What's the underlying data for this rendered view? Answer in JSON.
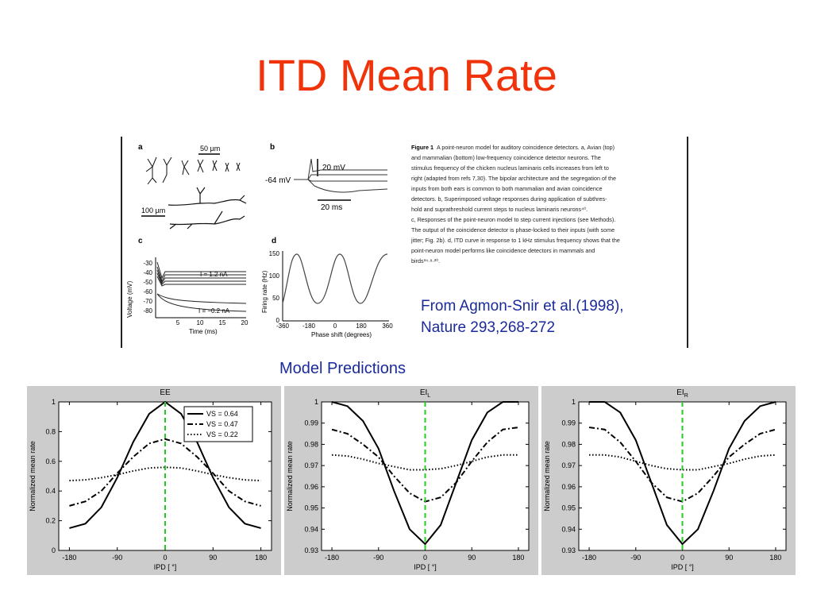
{
  "slide": {
    "title": "ITD Mean Rate",
    "citation_line1": "From Agmon-Snir et al.(1998),",
    "citation_line2": "Nature 293,268-272",
    "section_label": "Model Predictions"
  },
  "figure": {
    "panel_letters": [
      "a",
      "b",
      "c",
      "d"
    ],
    "a_scale1": "50 µm",
    "a_scale2": "100 µm",
    "b_scale_v": "20 mV",
    "b_scale_t": "20 ms",
    "b_rest": "-64 mV",
    "c_yticks": [
      "-30",
      "-40",
      "-50",
      "-60",
      "-70",
      "-80"
    ],
    "c_xticks": [
      "5",
      "10",
      "15",
      "20"
    ],
    "c_ylabel": "Voltage (mV)",
    "c_xlabel": "Time (ms)",
    "c_label_top": "I = 1.2 nA",
    "c_label_bottom": "I = −0.2 nA",
    "d_yticks": [
      "150",
      "100",
      "50",
      "0"
    ],
    "d_xticks": [
      "-360",
      "-180",
      "0",
      "180",
      "360"
    ],
    "d_ylabel": "Firing rate (Hz)",
    "d_xlabel": "Phase shift (degrees)",
    "caption_heading": "Figure 1",
    "caption_lines": [
      "A point-neuron model for auditory coincidence detectors. a, Avian (top)",
      "and mammalian (bottom) low-frequency coincidence detector neurons. The",
      "stimulus frequency of the chicken nucleus laminaris cells increases from left to",
      "right (adapted from refs 7,30). The bipolar architecture and the segregation of the",
      "inputs from both ears is common to both mammalian and avian coincidence",
      "detectors. b, Superimposed voltage responses during application of subthres-",
      "hold and suprathreshold current steps to nucleus laminaris neurons⁴⁰.",
      "c, Responses of the point-neuron model to step current injections (see Methods).",
      "The output of the coincidence detector is phase-locked to their inputs (with some",
      "jitter; Fig. 2b). d, ITD curve in response to 1 kHz stimulus frequency shows that the",
      "point-neuron model performs like coincidence detectors in mammals and",
      "birds³⁴·⁸·²⁰."
    ]
  },
  "colors": {
    "title": "#f0330a",
    "text_blue": "#1a2a9a",
    "panel_bg": "#cccccc",
    "marker": "#22cc22"
  },
  "chart_data": [
    {
      "type": "line",
      "title": "EE",
      "title_sub": "",
      "xlabel": "IPD [ °]",
      "ylabel": "Normalized mean rate",
      "xlim": [
        -200,
        200
      ],
      "ylim": [
        0,
        1
      ],
      "xticks": [
        -180,
        -90,
        0,
        90,
        180
      ],
      "yticks": [
        0,
        0.2,
        0.4,
        0.6,
        0.8,
        1
      ],
      "ytick_labels": [
        "0",
        "0.2",
        "0.4",
        "0.6",
        "0.8",
        "1"
      ],
      "marker_x": 0,
      "legend": "top-right",
      "series": [
        {
          "name": "VS = 0.64",
          "style": "solid",
          "x": [
            -180,
            -150,
            -120,
            -90,
            -60,
            -30,
            0,
            30,
            60,
            90,
            120,
            150,
            180
          ],
          "values": [
            0.15,
            0.18,
            0.29,
            0.49,
            0.73,
            0.92,
            1.0,
            0.92,
            0.73,
            0.49,
            0.29,
            0.18,
            0.15
          ]
        },
        {
          "name": "VS = 0.47",
          "style": "dashdot",
          "x": [
            -180,
            -150,
            -120,
            -90,
            -60,
            -30,
            0,
            30,
            60,
            90,
            120,
            150,
            180
          ],
          "values": [
            0.3,
            0.33,
            0.4,
            0.52,
            0.63,
            0.72,
            0.75,
            0.72,
            0.63,
            0.52,
            0.4,
            0.33,
            0.3
          ]
        },
        {
          "name": "VS = 0.22",
          "style": "dotted",
          "x": [
            -180,
            -150,
            -120,
            -90,
            -60,
            -30,
            0,
            30,
            60,
            90,
            120,
            150,
            180
          ],
          "values": [
            0.47,
            0.475,
            0.49,
            0.51,
            0.535,
            0.555,
            0.56,
            0.555,
            0.535,
            0.51,
            0.49,
            0.475,
            0.47
          ]
        }
      ]
    },
    {
      "type": "line",
      "title": "EI",
      "title_sub": "L",
      "xlabel": "IPD [ °]",
      "ylabel": "Normalized mean rate",
      "xlim": [
        -200,
        200
      ],
      "ylim": [
        0.93,
        1
      ],
      "xticks": [
        -180,
        -90,
        0,
        90,
        180
      ],
      "yticks": [
        0.93,
        0.94,
        0.95,
        0.96,
        0.97,
        0.98,
        0.99,
        1
      ],
      "ytick_labels": [
        "0.93",
        "0.94",
        "0.95",
        "0.96",
        "0.97",
        "0.98",
        "0.99",
        "1"
      ],
      "marker_x": 0,
      "series": [
        {
          "name": "",
          "style": "solid",
          "x": [
            -180,
            -150,
            -120,
            -90,
            -60,
            -30,
            0,
            30,
            60,
            90,
            120,
            150,
            180
          ],
          "values": [
            1.0,
            0.998,
            0.991,
            0.978,
            0.958,
            0.94,
            0.933,
            0.942,
            0.962,
            0.982,
            0.995,
            1.0,
            1.0
          ]
        },
        {
          "name": "",
          "style": "dashdot",
          "x": [
            -180,
            -150,
            -120,
            -90,
            -60,
            -30,
            0,
            30,
            60,
            90,
            120,
            150,
            180
          ],
          "values": [
            0.987,
            0.985,
            0.98,
            0.974,
            0.965,
            0.957,
            0.953,
            0.955,
            0.962,
            0.972,
            0.981,
            0.987,
            0.988
          ]
        },
        {
          "name": "",
          "style": "dotted",
          "x": [
            -180,
            -150,
            -120,
            -90,
            -60,
            -30,
            0,
            30,
            60,
            90,
            120,
            150,
            180
          ],
          "values": [
            0.975,
            0.9745,
            0.973,
            0.971,
            0.9695,
            0.968,
            0.968,
            0.9685,
            0.97,
            0.972,
            0.974,
            0.975,
            0.975
          ]
        }
      ]
    },
    {
      "type": "line",
      "title": "EI",
      "title_sub": "R",
      "xlabel": "IPD [ °]",
      "ylabel": "Normalized mean rate",
      "xlim": [
        -200,
        200
      ],
      "ylim": [
        0.93,
        1
      ],
      "xticks": [
        -180,
        -90,
        0,
        90,
        180
      ],
      "yticks": [
        0.93,
        0.94,
        0.95,
        0.96,
        0.97,
        0.98,
        0.99,
        1
      ],
      "ytick_labels": [
        "0.93",
        "0.94",
        "0.95",
        "0.96",
        "0.97",
        "0.98",
        "0.99",
        "1"
      ],
      "marker_x": 0,
      "series": [
        {
          "name": "",
          "style": "solid",
          "x": [
            -180,
            -150,
            -120,
            -90,
            -60,
            -30,
            0,
            30,
            60,
            90,
            120,
            150,
            180
          ],
          "values": [
            1.0,
            1.0,
            0.995,
            0.982,
            0.962,
            0.942,
            0.933,
            0.94,
            0.958,
            0.978,
            0.991,
            0.998,
            1.0
          ]
        },
        {
          "name": "",
          "style": "dashdot",
          "x": [
            -180,
            -150,
            -120,
            -90,
            -60,
            -30,
            0,
            30,
            60,
            90,
            120,
            150,
            180
          ],
          "values": [
            0.988,
            0.987,
            0.981,
            0.972,
            0.962,
            0.955,
            0.953,
            0.957,
            0.965,
            0.974,
            0.98,
            0.985,
            0.987
          ]
        },
        {
          "name": "",
          "style": "dotted",
          "x": [
            -180,
            -150,
            -120,
            -90,
            -60,
            -30,
            0,
            30,
            60,
            90,
            120,
            150,
            180
          ],
          "values": [
            0.975,
            0.975,
            0.974,
            0.972,
            0.97,
            0.9685,
            0.968,
            0.968,
            0.9695,
            0.971,
            0.973,
            0.9745,
            0.975
          ]
        }
      ]
    }
  ]
}
